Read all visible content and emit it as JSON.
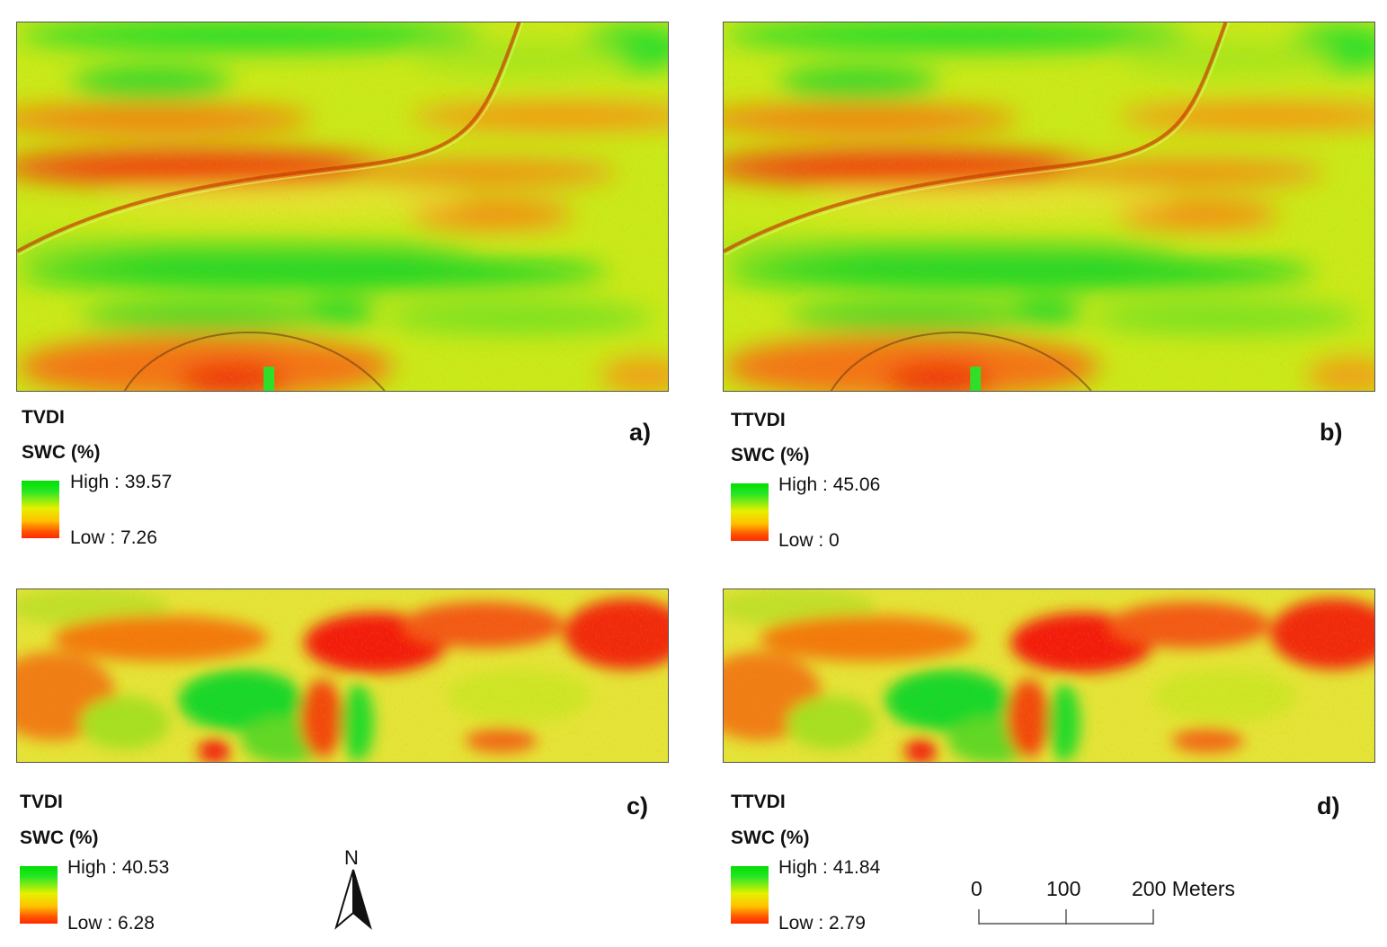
{
  "panels": [
    {
      "id": "a",
      "index_label": "TVDI",
      "legend_title": "SWC (%)",
      "high_label": "High : 39.57",
      "low_label": "Low : 7.26",
      "panel_label": "a)",
      "high_value": 39.57,
      "low_value": 7.26
    },
    {
      "id": "b",
      "index_label": "TTVDI",
      "legend_title": "SWC (%)",
      "high_label": "High : 45.06",
      "low_label": "Low : 0",
      "panel_label": "b)",
      "high_value": 45.06,
      "low_value": 0
    },
    {
      "id": "c",
      "index_label": "TVDI",
      "legend_title": "SWC (%)",
      "high_label": "High : 40.53",
      "low_label": "Low : 6.28",
      "panel_label": "c)",
      "high_value": 40.53,
      "low_value": 6.28
    },
    {
      "id": "d",
      "index_label": "TTVDI",
      "legend_title": "SWC (%)",
      "high_label": "High : 41.84",
      "low_label": "Low : 2.79",
      "panel_label": "d)",
      "high_value": 41.84,
      "low_value": 2.79
    }
  ],
  "north_arrow": {
    "label": "N"
  },
  "scale_bar": {
    "labels": [
      "0",
      "100",
      "200 Meters"
    ],
    "values": [
      0,
      100,
      200
    ],
    "unit": "Meters"
  },
  "colors": {
    "high": "#00e000",
    "mid": "#e6f000",
    "low": "#ff2a00"
  }
}
